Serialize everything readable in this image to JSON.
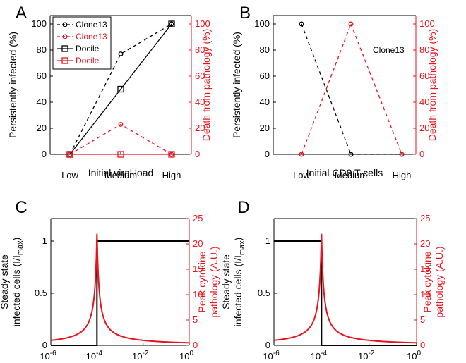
{
  "chart_data": [
    {
      "panel": "A",
      "type": "line",
      "categories": [
        "Low",
        "Medium",
        "High"
      ],
      "xlabel": "Initial viral load",
      "ylabel_left": "Persistently infected (%)",
      "ylabel_right": "Death from pathology (%)",
      "ylim": [
        0,
        100
      ],
      "left_ticks": [
        "0",
        "20",
        "40",
        "60",
        "80",
        "100"
      ],
      "right_ticks": [
        "0",
        "20",
        "40",
        "60",
        "80",
        "100"
      ],
      "legend_placement": "top-left",
      "series": [
        {
          "name": "Clone13",
          "axis": "left",
          "values": [
            0,
            77,
            100
          ],
          "color": "#000000",
          "dash": true,
          "marker": "circle"
        },
        {
          "name": "Clone13",
          "axis": "right",
          "values": [
            0,
            23,
            0
          ],
          "color": "#e8141d",
          "dash": true,
          "marker": "circle"
        },
        {
          "name": "Docile",
          "axis": "left",
          "values": [
            0,
            50,
            100
          ],
          "color": "#000000",
          "dash": false,
          "marker": "square"
        },
        {
          "name": "Docile",
          "axis": "right",
          "values": [
            0,
            0,
            0
          ],
          "color": "#e8141d",
          "dash": false,
          "marker": "square"
        }
      ]
    },
    {
      "panel": "B",
      "type": "line",
      "categories": [
        "Low",
        "Medium",
        "High"
      ],
      "xlabel": "Initial CD8 T cells",
      "ylabel_left": "Persistently infected (%)",
      "ylabel_right": "Death from pathology (%)",
      "ylim": [
        0,
        100
      ],
      "left_ticks": [
        "0",
        "20",
        "40",
        "60",
        "80",
        "100"
      ],
      "right_ticks": [
        "0",
        "20",
        "40",
        "60",
        "80",
        "100"
      ],
      "annotation": "Clone13",
      "series": [
        {
          "axis": "left",
          "values": [
            100,
            0,
            0
          ],
          "color": "#000000",
          "dash": true,
          "marker": "circle"
        },
        {
          "axis": "right",
          "values": [
            0,
            100,
            0
          ],
          "color": "#e8141d",
          "dash": true,
          "marker": "circle"
        }
      ]
    },
    {
      "panel": "C",
      "type": "line",
      "x_scale": "log",
      "xlim": [
        1e-06,
        1
      ],
      "xlabel": "Initial infected cells (I/I",
      "xlabel_sub": "max",
      "xlabel_end": ")",
      "x_ticks": [
        {
          "base": "10",
          "exp": "-6"
        },
        {
          "base": "10",
          "exp": "-4"
        },
        {
          "base": "10",
          "exp": "-2"
        },
        {
          "base": "10",
          "exp": "0"
        }
      ],
      "ylabel_left_lines": [
        "Steady state",
        "infected cells (I/I"
      ],
      "ylabel_left_sub": "max",
      "ylabel_left_end": ")",
      "ylabel_right_lines": [
        "Peak cytokine",
        "pathology (A.U.)"
      ],
      "ylim_left": [
        0,
        1
      ],
      "ylim_right": [
        0,
        25
      ],
      "left_ticks": [
        "0",
        "0.5",
        "1"
      ],
      "right_ticks": [
        "0",
        "5",
        "10",
        "15",
        "20",
        "25"
      ],
      "steady_state": {
        "axis": "left",
        "color": "#000000",
        "threshold_x": 0.0001,
        "low": 0,
        "high": 1,
        "side": "above"
      },
      "peak_pathology": {
        "axis": "right",
        "color": "#e8141d",
        "peak_x": 0.0001,
        "peak_y": 22,
        "tail_slope": 0.85
      }
    },
    {
      "panel": "D",
      "type": "line",
      "x_scale": "log",
      "xlim": [
        1e-06,
        1
      ],
      "xlabel": "Initial CD8 T cells (E/I",
      "xlabel_sub": "max",
      "xlabel_end": ")",
      "x_ticks": [
        {
          "base": "10",
          "exp": "-6"
        },
        {
          "base": "10",
          "exp": "-4"
        },
        {
          "base": "10",
          "exp": "-2"
        },
        {
          "base": "10",
          "exp": "0"
        }
      ],
      "ylabel_left_lines": [
        "Steady state",
        "infected cells (I/I"
      ],
      "ylabel_left_sub": "max",
      "ylabel_left_end": ")",
      "ylabel_right_lines": [
        "Peak cytokine",
        "pathology (A.U.)"
      ],
      "ylim_left": [
        0,
        1
      ],
      "ylim_right": [
        0,
        25
      ],
      "left_ticks": [
        "0",
        "0.5",
        "1"
      ],
      "right_ticks": [
        "0",
        "5",
        "10",
        "15",
        "20",
        "25"
      ],
      "steady_state": {
        "axis": "left",
        "color": "#000000",
        "threshold_x": 0.0001,
        "low": 0,
        "high": 1,
        "side": "below"
      },
      "peak_pathology": {
        "axis": "right",
        "color": "#e8141d",
        "peak_x": 0.0001,
        "peak_y": 22,
        "tail_slope": 0.85
      }
    }
  ]
}
